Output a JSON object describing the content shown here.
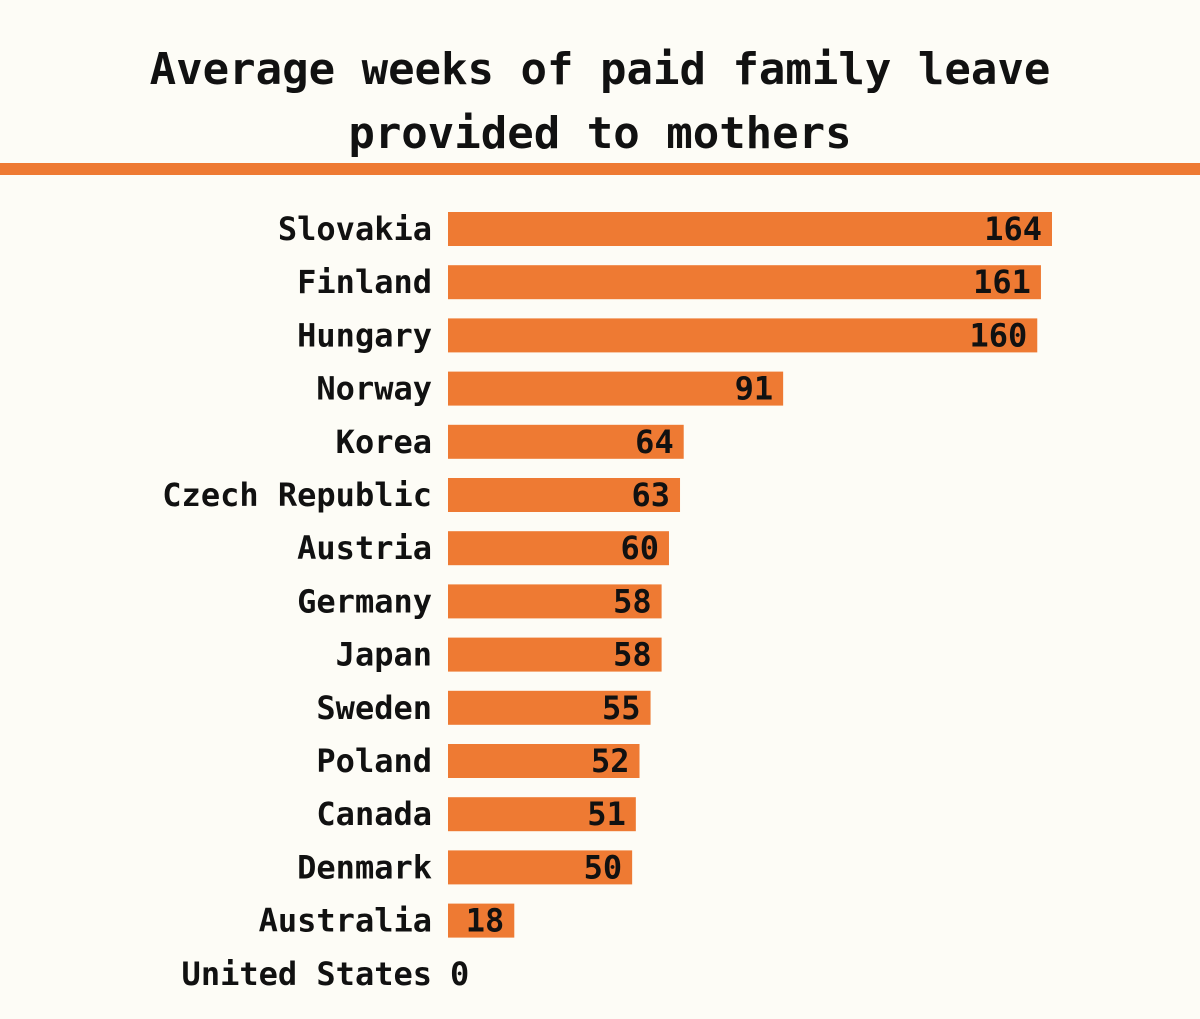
{
  "chart_data": {
    "type": "bar",
    "orientation": "horizontal",
    "title": "Average weeks of paid family leave\nprovided to mothers",
    "categories": [
      "Slovakia",
      "Finland",
      "Hungary",
      "Norway",
      "Korea",
      "Czech Republic",
      "Austria",
      "Germany",
      "Japan",
      "Sweden",
      "Poland",
      "Canada",
      "Denmark",
      "Australia",
      "United States"
    ],
    "values": [
      164,
      161,
      160,
      91,
      64,
      63,
      60,
      58,
      58,
      55,
      52,
      51,
      50,
      18,
      0
    ],
    "xlim": [
      0,
      164
    ],
    "grid": false,
    "legend": "none",
    "data_labels": "inside-end"
  },
  "colors": {
    "bar": "#ee7a33",
    "accent_rule": "#ee7a33",
    "background": "#fdfcf6",
    "text": "#111111"
  }
}
